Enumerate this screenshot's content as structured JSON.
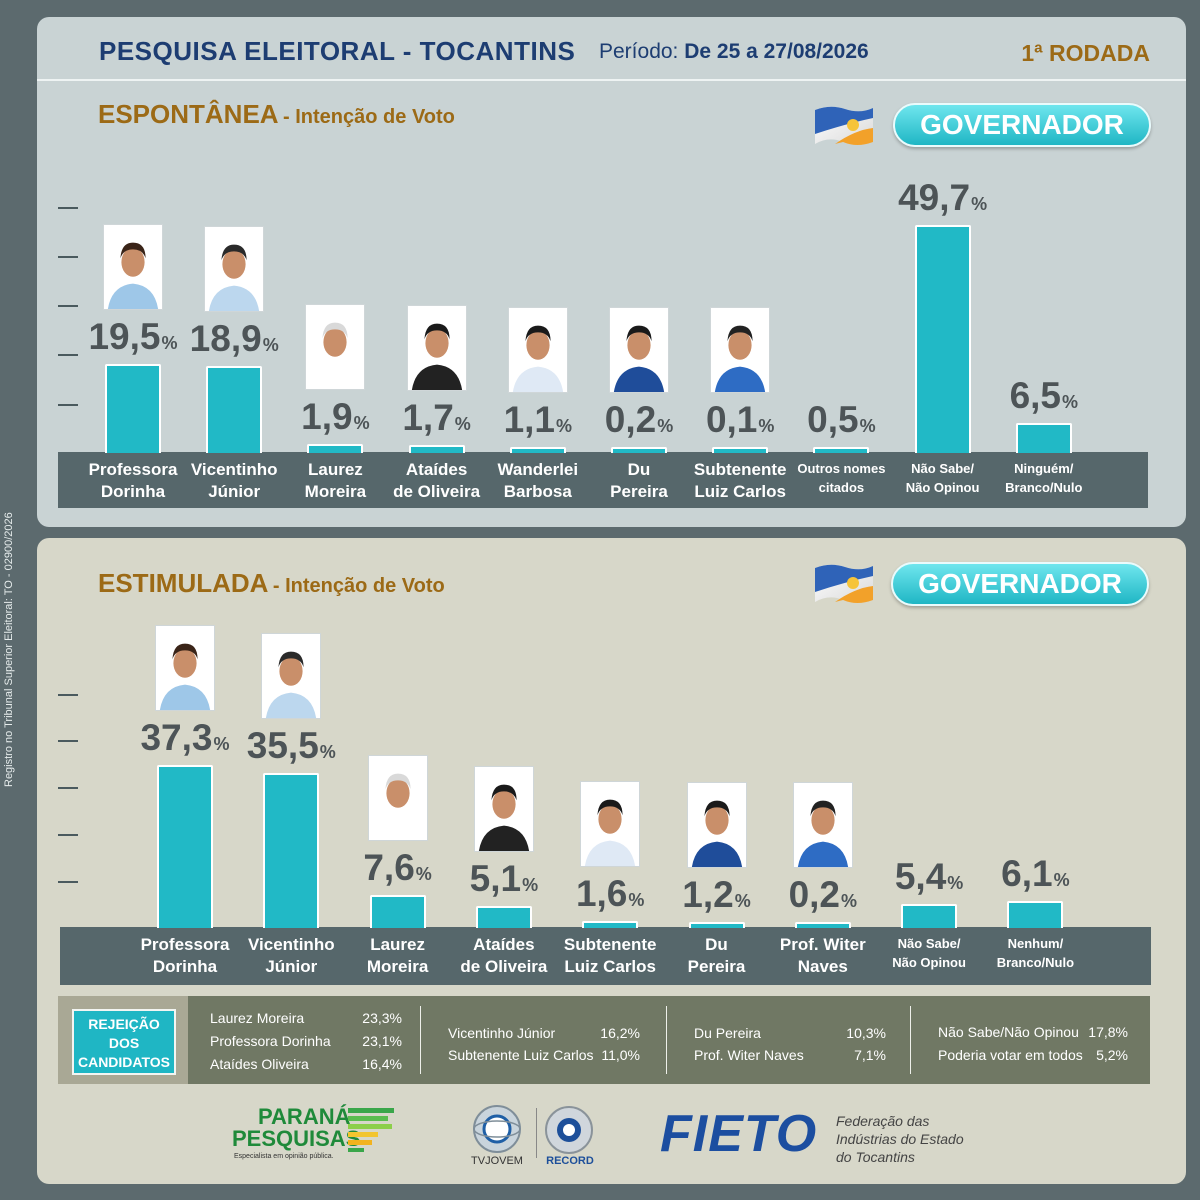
{
  "side_text": "Registro no Tribunal Superior Eleitoral: TO - 02900/2026",
  "header": {
    "title": "PESQUISA ELEITORAL - TOCANTINS",
    "period_label": "Período:",
    "period_value": "De 25 a 27/08/2026",
    "round": "1ª RODADA"
  },
  "office_label": "GOVERNADOR",
  "colors": {
    "bar": "#21b9c6",
    "title": "#1d3d72",
    "accent": "#9c6a16",
    "band": "#56676b"
  },
  "chart_data": [
    {
      "type": "bar",
      "title": "ESPONTÂNEA",
      "subtitle": "Intenção de Voto",
      "unit": "%",
      "ylim": [
        0,
        50
      ],
      "categories": [
        [
          "Professora",
          "Dorinha"
        ],
        [
          "Vicentinho",
          "Júnior"
        ],
        [
          "Laurez",
          "Moreira"
        ],
        [
          "Ataídes",
          "de Oliveira"
        ],
        [
          "Wanderlei",
          "Barbosa"
        ],
        [
          "Du",
          "Pereira"
        ],
        [
          "Subtenente",
          "Luiz Carlos"
        ],
        [
          "Outros nomes",
          "citados"
        ],
        [
          "Não Sabe/",
          "Não Opinou"
        ],
        [
          "Ninguém/",
          "Branco/Nulo"
        ]
      ],
      "values": [
        19.5,
        18.9,
        1.9,
        1.7,
        1.1,
        0.2,
        0.1,
        0.5,
        49.7,
        6.5
      ],
      "value_labels": [
        "19,5",
        "18,9",
        "1,9",
        "1,7",
        "1,1",
        "0,2",
        "0,1",
        "0,5",
        "49,7",
        "6,5"
      ],
      "photos": [
        true,
        true,
        true,
        true,
        true,
        true,
        true,
        false,
        false,
        false
      ]
    },
    {
      "type": "bar",
      "title": "ESTIMULADA",
      "subtitle": "Intenção de Voto",
      "unit": "%",
      "ylim": [
        0,
        50
      ],
      "categories": [
        [
          "Professora",
          "Dorinha"
        ],
        [
          "Vicentinho",
          "Júnior"
        ],
        [
          "Laurez",
          "Moreira"
        ],
        [
          "Ataídes",
          "de Oliveira"
        ],
        [
          "Subtenente",
          "Luiz Carlos"
        ],
        [
          "Du",
          "Pereira"
        ],
        [
          "Prof. Witer",
          "Naves"
        ],
        [
          "Não Sabe/",
          "Não Opinou"
        ],
        [
          "Nenhum/",
          "Branco/Nulo"
        ]
      ],
      "values": [
        37.3,
        35.5,
        7.6,
        5.1,
        1.6,
        1.2,
        0.2,
        5.4,
        6.1
      ],
      "value_labels": [
        "37,3",
        "35,5",
        "7,6",
        "5,1",
        "1,6",
        "1,2",
        "0,2",
        "5,4",
        "6,1"
      ],
      "photos": [
        true,
        true,
        true,
        true,
        true,
        true,
        true,
        false,
        false
      ]
    }
  ],
  "rejection": {
    "title": [
      "REJEIÇÃO",
      "DOS",
      "CANDIDATOS"
    ],
    "columns": [
      [
        [
          "Laurez Moreira",
          "23,3%"
        ],
        [
          "Professora Dorinha",
          "23,1%"
        ],
        [
          "Ataídes Oliveira",
          "16,4%"
        ]
      ],
      [
        [
          "Vicentinho Júnior",
          "16,2%"
        ],
        [
          "Subtenente Luiz Carlos",
          "11,0%"
        ]
      ],
      [
        [
          "Du Pereira",
          "10,3%"
        ],
        [
          "Prof. Witer Naves",
          "7,1%"
        ]
      ],
      [
        [
          "Não Sabe/Não Opinou",
          "17,8%"
        ],
        [
          "Poderia votar em todos",
          "5,2%"
        ]
      ]
    ]
  },
  "logos": {
    "parana_line1": "PARANÁ",
    "parana_line2": "PESQUISAS",
    "parana_tagline": "Especialista em opinião pública.",
    "tv_jovem": "TVJOVEM",
    "record": "RECORD",
    "fieto": "FIETO",
    "fieto_desc": [
      "Federação das",
      "Indústrias do Estado",
      "do Tocantins"
    ]
  }
}
